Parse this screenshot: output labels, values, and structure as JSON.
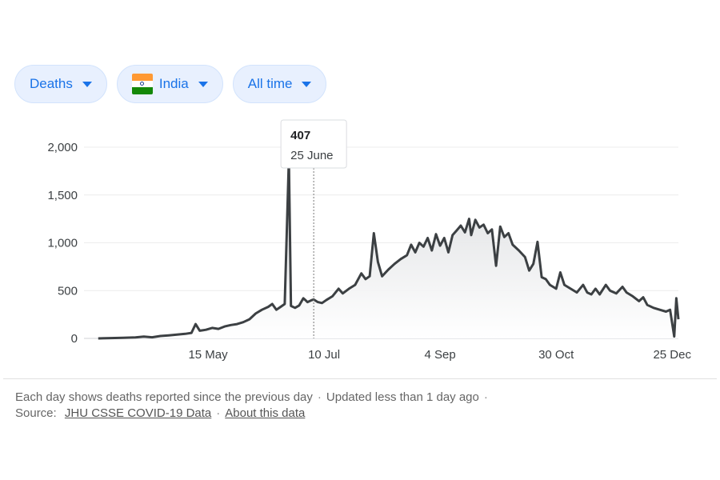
{
  "filters": {
    "metric": "Deaths",
    "country": "India",
    "range": "All time"
  },
  "tooltip": {
    "value": "407",
    "date": "25 June"
  },
  "footer": {
    "note": "Each day shows deaths reported since the previous day",
    "updated": "Updated less than 1 day ago",
    "source_label": "Source:",
    "source_link": "JHU CSSE COVID-19 Data",
    "about_link": "About this data"
  },
  "chart_data": {
    "type": "line",
    "title": "",
    "xlabel": "",
    "ylabel": "",
    "ylim": [
      0,
      2000
    ],
    "yticks": [
      "0",
      "500",
      "1,000",
      "1,500",
      "2,000"
    ],
    "ytick_values": [
      0,
      500,
      1000,
      1500,
      2000
    ],
    "xticks": [
      "15 May",
      "10 Jul",
      "4 Sep",
      "30 Oct",
      "25 Dec"
    ],
    "xtick_days": [
      135,
      191,
      247,
      303,
      359
    ],
    "grid": true,
    "series": [
      {
        "name": "",
        "color": "#3c4043",
        "points": [
          [
            82,
            0
          ],
          [
            88,
            3
          ],
          [
            94,
            6
          ],
          [
            100,
            10
          ],
          [
            104,
            18
          ],
          [
            108,
            12
          ],
          [
            112,
            25
          ],
          [
            116,
            32
          ],
          [
            120,
            40
          ],
          [
            124,
            48
          ],
          [
            127,
            58
          ],
          [
            129,
            150
          ],
          [
            131,
            80
          ],
          [
            134,
            90
          ],
          [
            137,
            110
          ],
          [
            140,
            100
          ],
          [
            143,
            125
          ],
          [
            146,
            140
          ],
          [
            149,
            150
          ],
          [
            152,
            170
          ],
          [
            155,
            200
          ],
          [
            158,
            260
          ],
          [
            161,
            300
          ],
          [
            164,
            330
          ],
          [
            166,
            360
          ],
          [
            168,
            300
          ],
          [
            170,
            330
          ],
          [
            172,
            360
          ],
          [
            174,
            1880
          ],
          [
            175,
            340
          ],
          [
            177,
            320
          ],
          [
            179,
            345
          ],
          [
            181,
            420
          ],
          [
            183,
            380
          ],
          [
            185,
            400
          ],
          [
            186,
            407
          ],
          [
            188,
            380
          ],
          [
            190,
            370
          ],
          [
            192,
            400
          ],
          [
            195,
            440
          ],
          [
            198,
            520
          ],
          [
            200,
            470
          ],
          [
            203,
            520
          ],
          [
            206,
            560
          ],
          [
            209,
            680
          ],
          [
            211,
            620
          ],
          [
            213,
            650
          ],
          [
            215,
            1100
          ],
          [
            217,
            800
          ],
          [
            219,
            650
          ],
          [
            222,
            720
          ],
          [
            225,
            780
          ],
          [
            228,
            830
          ],
          [
            231,
            870
          ],
          [
            233,
            980
          ],
          [
            235,
            900
          ],
          [
            237,
            1000
          ],
          [
            239,
            960
          ],
          [
            241,
            1050
          ],
          [
            243,
            920
          ],
          [
            245,
            1090
          ],
          [
            247,
            970
          ],
          [
            249,
            1050
          ],
          [
            251,
            900
          ],
          [
            253,
            1080
          ],
          [
            255,
            1130
          ],
          [
            257,
            1180
          ],
          [
            259,
            1110
          ],
          [
            261,
            1250
          ],
          [
            262,
            1080
          ],
          [
            264,
            1240
          ],
          [
            266,
            1160
          ],
          [
            268,
            1190
          ],
          [
            270,
            1100
          ],
          [
            272,
            1140
          ],
          [
            274,
            760
          ],
          [
            276,
            1170
          ],
          [
            278,
            1060
          ],
          [
            280,
            1100
          ],
          [
            282,
            980
          ],
          [
            285,
            920
          ],
          [
            288,
            850
          ],
          [
            290,
            710
          ],
          [
            292,
            780
          ],
          [
            294,
            1010
          ],
          [
            296,
            640
          ],
          [
            298,
            620
          ],
          [
            300,
            560
          ],
          [
            303,
            520
          ],
          [
            305,
            690
          ],
          [
            307,
            560
          ],
          [
            310,
            520
          ],
          [
            313,
            480
          ],
          [
            316,
            560
          ],
          [
            318,
            480
          ],
          [
            320,
            460
          ],
          [
            322,
            520
          ],
          [
            324,
            460
          ],
          [
            327,
            560
          ],
          [
            329,
            500
          ],
          [
            332,
            470
          ],
          [
            335,
            540
          ],
          [
            337,
            480
          ],
          [
            340,
            440
          ],
          [
            343,
            390
          ],
          [
            345,
            430
          ],
          [
            347,
            350
          ],
          [
            350,
            320
          ],
          [
            353,
            300
          ],
          [
            356,
            280
          ],
          [
            358,
            300
          ],
          [
            360,
            20
          ],
          [
            361,
            420
          ],
          [
            362,
            200
          ]
        ]
      }
    ],
    "hover_day": 186
  }
}
